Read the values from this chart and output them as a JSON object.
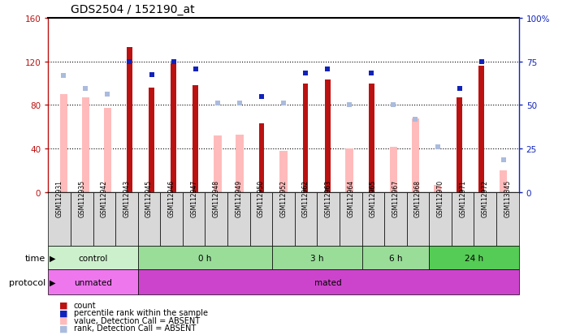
{
  "title": "GDS2504 / 152190_at",
  "samples": [
    "GSM112931",
    "GSM112935",
    "GSM112942",
    "GSM112943",
    "GSM112945",
    "GSM112946",
    "GSM112947",
    "GSM112948",
    "GSM112949",
    "GSM112950",
    "GSM112952",
    "GSM112962",
    "GSM112963",
    "GSM112964",
    "GSM112965",
    "GSM112967",
    "GSM112968",
    "GSM112970",
    "GSM112971",
    "GSM112972",
    "GSM113345"
  ],
  "red_bar_values": [
    null,
    null,
    null,
    133,
    96,
    118,
    98,
    null,
    null,
    63,
    null,
    100,
    103,
    null,
    100,
    null,
    null,
    null,
    87,
    116,
    null
  ],
  "pink_bar_values": [
    90,
    87,
    77,
    null,
    null,
    null,
    null,
    52,
    53,
    null,
    38,
    null,
    null,
    40,
    null,
    42,
    68,
    7,
    null,
    null,
    20
  ],
  "blue_sq_values": [
    null,
    null,
    null,
    120,
    108,
    120,
    113,
    null,
    null,
    88,
    null,
    109,
    113,
    null,
    109,
    null,
    null,
    null,
    95,
    120,
    null
  ],
  "lblue_sq_values": [
    107,
    95,
    90,
    null,
    null,
    null,
    null,
    82,
    82,
    null,
    82,
    null,
    null,
    80,
    null,
    80,
    67,
    42,
    null,
    null,
    30
  ],
  "ylim_left": [
    0,
    160
  ],
  "ylim_right": [
    0,
    100
  ],
  "yticks_left": [
    0,
    40,
    80,
    120,
    160
  ],
  "yticks_right": [
    0,
    25,
    50,
    75,
    100
  ],
  "ytick_labels_left": [
    "0",
    "40",
    "80",
    "120",
    "160"
  ],
  "ytick_labels_right": [
    "0",
    "25",
    "50",
    "75",
    "100%"
  ],
  "time_groups": [
    {
      "label": "control",
      "start": 0,
      "end": 4,
      "color": "#ccf0cc"
    },
    {
      "label": "0 h",
      "start": 4,
      "end": 10,
      "color": "#99dd99"
    },
    {
      "label": "3 h",
      "start": 10,
      "end": 14,
      "color": "#99dd99"
    },
    {
      "label": "6 h",
      "start": 14,
      "end": 17,
      "color": "#99dd99"
    },
    {
      "label": "24 h",
      "start": 17,
      "end": 21,
      "color": "#55cc55"
    }
  ],
  "protocol_groups": [
    {
      "label": "unmated",
      "start": 0,
      "end": 4,
      "color": "#ee77ee"
    },
    {
      "label": "mated",
      "start": 4,
      "end": 21,
      "color": "#cc44cc"
    }
  ],
  "red_color": "#bb1111",
  "pink_color": "#ffbbbb",
  "blue_color": "#1122bb",
  "lblue_color": "#aabbdd",
  "red_bar_width": 0.25,
  "pink_bar_width": 0.35
}
